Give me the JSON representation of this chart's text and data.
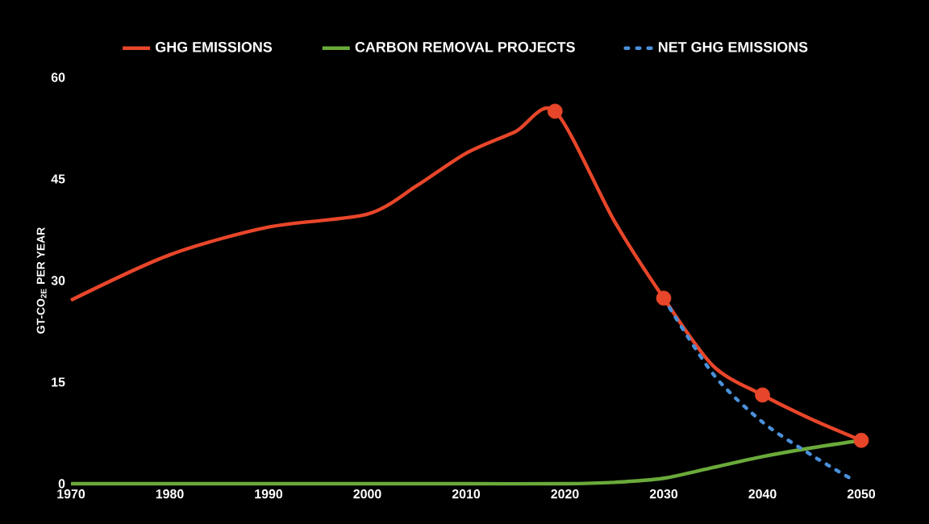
{
  "chart_data": {
    "type": "line",
    "ylabel": "GT-CO$_{2E}$ PER YEAR",
    "xlim": [
      1970,
      2050
    ],
    "xticks": [
      1970,
      1980,
      1990,
      2000,
      2010,
      2020,
      2030,
      2040,
      2050
    ],
    "ylim": [
      0,
      60
    ],
    "yticks": [
      0,
      15,
      30,
      45,
      60
    ],
    "grid": false,
    "legend": "top",
    "series": [
      {
        "name": "GHG EMISSIONS",
        "color": "#e8462a",
        "line_style": "solid",
        "marker": "none",
        "x": [
          1970,
          1980,
          1990,
          2000,
          2005,
          2010,
          2015,
          2019,
          2025,
          2030,
          2035,
          2040,
          2045,
          2050
        ],
        "values": [
          27.1,
          33.8,
          37.9,
          39.8,
          44,
          48.8,
          52,
          55,
          38.8,
          27.4,
          17.4,
          13.1,
          9.5,
          6.4
        ]
      },
      {
        "name": "CARBON REMOVAL PROJECTS",
        "color": "#6aaa3a",
        "line_style": "solid",
        "marker": "none",
        "x": [
          1970,
          1980,
          1990,
          2000,
          2010,
          2020,
          2025,
          2030,
          2035,
          2040,
          2045,
          2050
        ],
        "values": [
          0,
          0,
          0,
          0,
          0,
          0,
          0.2,
          0.8,
          2.4,
          4,
          5.3,
          6.4
        ]
      },
      {
        "name": "NET GHG EMISSIONS",
        "color": "#4a90d9",
        "line_style": "dotted",
        "marker": "none",
        "x": [
          2030,
          2035,
          2040,
          2045,
          2049
        ],
        "values": [
          27.4,
          16.2,
          9.1,
          4.2,
          0.7
        ]
      },
      {
        "type": "scatter",
        "color": "#e8462a",
        "marker": "circle",
        "x": [
          2019,
          2030,
          2040,
          2050
        ],
        "values": [
          55,
          27.4,
          13.1,
          6.4
        ]
      }
    ]
  }
}
